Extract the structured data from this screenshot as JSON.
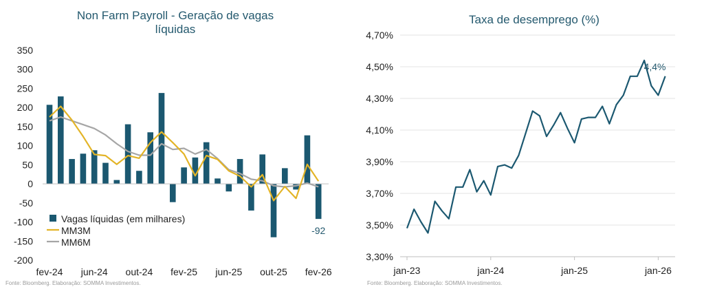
{
  "chart_data": [
    {
      "type": "bar",
      "title": "Non Farm Payroll - Geração de vagas líquidas",
      "source": "Fonte: Bloomberg. Elaboração: SOMMA Investimentos.",
      "ylim": [
        -200,
        350
      ],
      "yticks": [
        -200,
        -150,
        -100,
        -50,
        0,
        50,
        100,
        150,
        200,
        250,
        300,
        350
      ],
      "xtick_labels": [
        "fev-24",
        "jun-24",
        "out-24",
        "fev-25",
        "jun-25",
        "out-25",
        "fev-26"
      ],
      "xtick_index": [
        0,
        4,
        8,
        12,
        16,
        20,
        24
      ],
      "categories": [
        "fev-24",
        "mar-24",
        "abr-24",
        "mai-24",
        "jun-24",
        "jul-24",
        "ago-24",
        "set-24",
        "out-24",
        "nov-24",
        "dez-24",
        "jan-25",
        "fev-25",
        "mar-25",
        "abr-25",
        "mai-25",
        "jun-25",
        "jul-25",
        "ago-25",
        "set-25",
        "out-25",
        "nov-25",
        "dez-25",
        "jan-26",
        "fev-26"
      ],
      "series": [
        {
          "name": "Vagas líquidas (em milhares)",
          "kind": "bar",
          "color": "#1b5870",
          "values": [
            207,
            229,
            65,
            79,
            88,
            55,
            10,
            156,
            34,
            135,
            238,
            -48,
            43,
            69,
            109,
            14,
            -20,
            65,
            -70,
            77,
            -140,
            41,
            -15,
            127,
            -92
          ]
        },
        {
          "name": "MM3M",
          "kind": "line",
          "color": "#e3b427",
          "values": [
            175,
            203,
            167,
            124,
            77,
            74,
            51,
            74,
            67,
            108,
            136,
            108,
            78,
            21,
            74,
            64,
            34,
            20,
            -8,
            24,
            -44,
            -7,
            -38,
            51,
            7
          ]
        },
        {
          "name": "MM6M",
          "kind": "line",
          "color": "#a6a6a6",
          "values": [
            165,
            175,
            165,
            155,
            145,
            128,
            105,
            85,
            75,
            75,
            105,
            90,
            93,
            78,
            90,
            66,
            37,
            27,
            12,
            8,
            -5,
            -8,
            -5,
            2,
            -8
          ]
        }
      ],
      "annotations": [
        {
          "text": "-92",
          "index": 24
        }
      ]
    },
    {
      "type": "line",
      "title": "Taxa de desemprego (%)",
      "source": "Fonte: Bloomberg. Elaboração: SOMMA Investimentos.",
      "ylim": [
        3.3,
        4.7
      ],
      "ytick_labels": [
        "3,30%",
        "3,50%",
        "3,70%",
        "3,90%",
        "4,10%",
        "4,30%",
        "4,50%",
        "4,70%"
      ],
      "ytick_values": [
        3.3,
        3.5,
        3.7,
        3.9,
        4.1,
        4.3,
        4.5,
        4.7
      ],
      "xtick_labels": [
        "jan-23",
        "jan-24",
        "jan-25",
        "jan-26"
      ],
      "xtick_index": [
        0,
        12,
        24,
        36
      ],
      "series": [
        {
          "name": "Taxa de desemprego",
          "color": "#1b5870",
          "values": [
            3.48,
            3.6,
            3.52,
            3.45,
            3.65,
            3.59,
            3.54,
            3.74,
            3.74,
            3.85,
            3.71,
            3.78,
            3.69,
            3.87,
            3.88,
            3.86,
            3.94,
            4.08,
            4.22,
            4.19,
            4.06,
            4.13,
            4.21,
            4.11,
            4.02,
            4.17,
            4.18,
            4.18,
            4.25,
            4.14,
            4.26,
            4.32,
            4.44,
            4.44,
            4.54,
            4.38,
            4.32,
            4.44
          ]
        }
      ],
      "annotations": [
        {
          "text": "4,4%",
          "index": 37
        }
      ]
    }
  ]
}
